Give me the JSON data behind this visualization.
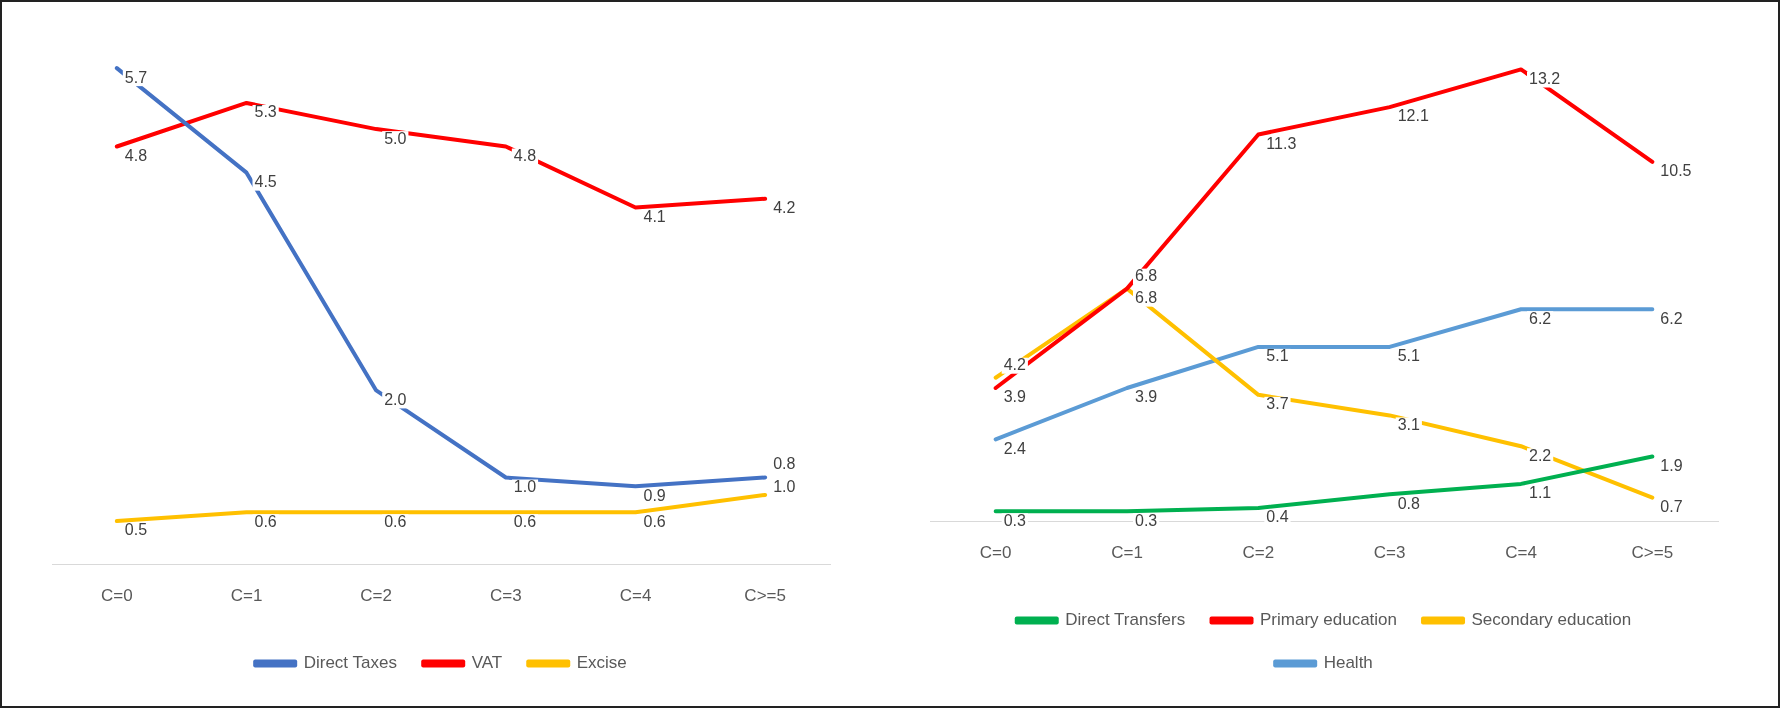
{
  "chart_data": [
    {
      "type": "line",
      "categories": [
        "C=0",
        "C=1",
        "C=2",
        "C=3",
        "C=4",
        "C>=5"
      ],
      "tick_labels": "x",
      "grid": false,
      "legend": "bottom",
      "marker": "none",
      "line_style": "solid",
      "series": [
        {
          "name": "Direct Taxes",
          "color": "#4472c4",
          "values": [
            5.7,
            4.5,
            2.0,
            1.0,
            0.9,
            1.0
          ],
          "value_labels": [
            "5.7",
            "4.5",
            "2.0",
            "1.0",
            "0.9",
            "1.0"
          ]
        },
        {
          "name": "VAT",
          "color": "#ff0000",
          "values": [
            4.8,
            5.3,
            5.0,
            4.8,
            4.1,
            4.2
          ],
          "value_labels": [
            "4.8",
            "5.3",
            "5.0",
            "4.8",
            "4.1",
            "4.2"
          ]
        },
        {
          "name": "Excise",
          "color": "#ffc000",
          "values": [
            0.5,
            0.6,
            0.6,
            0.6,
            0.6,
            0.8
          ],
          "value_labels": [
            "0.5",
            "0.6",
            "0.6",
            "0.6",
            "0.6",
            "0.8"
          ]
        }
      ]
    },
    {
      "type": "line",
      "categories": [
        "C=0",
        "C=1",
        "C=2",
        "C=3",
        "C=4",
        "C>=5"
      ],
      "tick_labels": "x",
      "grid": false,
      "legend": "bottom",
      "marker": "none",
      "line_style": "solid",
      "series": [
        {
          "name": "Direct Transfers",
          "color": "#00b050",
          "values": [
            0.3,
            0.3,
            0.4,
            0.8,
            1.1,
            1.9
          ],
          "value_labels": [
            "0.3",
            "0.3",
            "0.4",
            "0.8",
            "1.1",
            "1.9"
          ]
        },
        {
          "name": "Primary education",
          "color": "#ff0000",
          "values": [
            3.9,
            6.8,
            11.3,
            12.1,
            13.2,
            10.5
          ],
          "value_labels": [
            "3.9",
            "6.8",
            "11.3",
            "12.1",
            "13.2",
            "10.5"
          ]
        },
        {
          "name": "Secondary education",
          "color": "#ffc000",
          "values": [
            4.2,
            6.8,
            3.7,
            3.1,
            2.2,
            0.7
          ],
          "value_labels": [
            "4.2",
            "6.8",
            "3.7",
            "3.1",
            "2.2",
            "0.7"
          ]
        },
        {
          "name": "Health",
          "color": "#5b9bd5",
          "values": [
            2.4,
            3.9,
            5.1,
            5.1,
            6.2,
            6.2
          ],
          "value_labels": [
            "2.4",
            "3.9",
            "5.1",
            "5.1",
            "6.2",
            "6.2"
          ]
        }
      ]
    }
  ]
}
